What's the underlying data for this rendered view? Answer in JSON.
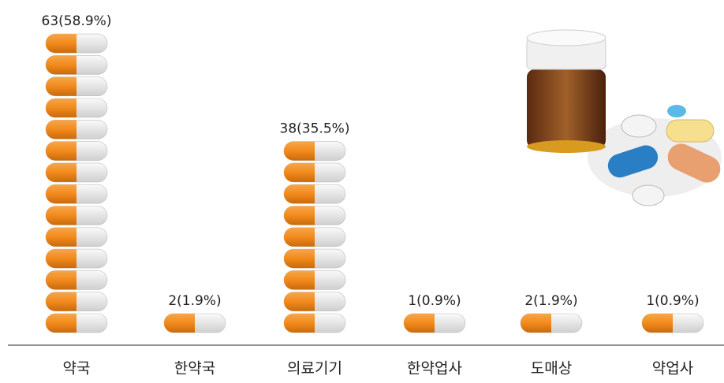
{
  "chart_data": {
    "type": "pictograph",
    "categories": [
      "약국",
      "한약국",
      "의료기기",
      "한약업사",
      "도매상",
      "약업사"
    ],
    "values": [
      63,
      2,
      38,
      1,
      2,
      1
    ],
    "value_labels": [
      "63(58.9%)",
      "2(1.9%)",
      "38(35.5%)",
      "1(0.9%)",
      "2(1.9%)",
      "1(0.9%)"
    ],
    "color": "#f28a1c"
  }
}
